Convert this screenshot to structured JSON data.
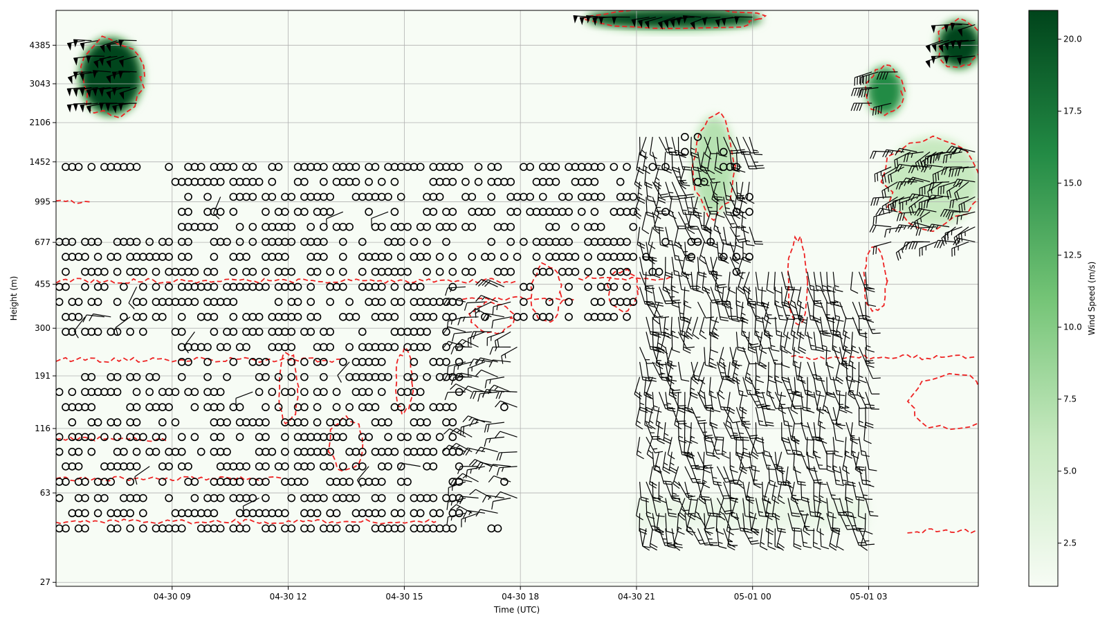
{
  "chart_data": {
    "type": "heatmap",
    "subtype": "time-height wind barbs over wind-speed shading",
    "xlabel": "Time (UTC)",
    "ylabel": "Height (m)",
    "x_range": [
      "04-30 06:00",
      "05-01 05:50"
    ],
    "x_ticks": [
      {
        "time": "04-30 09:00",
        "label": "04-30 09"
      },
      {
        "time": "04-30 12:00",
        "label": "04-30 12"
      },
      {
        "time": "04-30 15:00",
        "label": "04-30 15"
      },
      {
        "time": "04-30 18:00",
        "label": "04-30 18"
      },
      {
        "time": "04-30 21:00",
        "label": "04-30 21"
      },
      {
        "time": "05-01 00:00",
        "label": "05-01 00"
      },
      {
        "time": "05-01 03:00",
        "label": "05-01 03"
      }
    ],
    "y_scale": "log",
    "y_range": [
      26,
      6100
    ],
    "y_ticks": [
      27,
      63,
      116,
      191,
      300,
      455,
      677,
      995,
      1452,
      2106,
      3043,
      4385
    ],
    "grid": true,
    "colorbar": {
      "label": "Wind Speed (m/s)",
      "colormap": "Greens",
      "range": [
        1,
        21
      ],
      "ticks": [
        2.5,
        5.0,
        7.5,
        10.0,
        12.5,
        15.0,
        17.5,
        20.0
      ],
      "tick_labels": [
        "2.5",
        "5.0",
        "7.5",
        "10.0",
        "12.5",
        "15.0",
        "17.5",
        "20.0"
      ]
    },
    "contour": {
      "color": "#ee2222",
      "style": "dashed"
    },
    "colors": {
      "calm_marker": "#000000",
      "barb": "#000000",
      "grid": "#b0b0b0"
    },
    "bands": [
      {
        "from": "04-30 06:00",
        "to": "04-30 09:00",
        "regime": "calm",
        "levels": [
          [
            45,
            215
          ],
          [
            285,
            780
          ],
          [
            1300,
            1550
          ]
        ]
      },
      {
        "from": "04-30 09:00",
        "to": "04-30 16:30",
        "regime": "calm",
        "levels": [
          [
            45,
            1550
          ]
        ]
      },
      {
        "from": "04-30 16:30",
        "to": "04-30 18:00",
        "regime": "mixed",
        "levels": [
          [
            45,
            1550
          ]
        ]
      },
      {
        "from": "04-30 18:00",
        "to": "04-30 21:00",
        "regime": "calm-aloft",
        "levels": [
          [
            300,
            1550
          ]
        ]
      },
      {
        "from": "04-30 21:00",
        "to": "05-01 00:00",
        "regime": "barbs",
        "levels": [
          [
            45,
            1900
          ]
        ]
      },
      {
        "from": "05-01 00:00",
        "to": "05-01 03:00",
        "regime": "barbs-low",
        "levels": [
          [
            45,
            580
          ]
        ]
      },
      {
        "from": "05-01 03:30",
        "to": "05-01 05:50",
        "regime": "barbs-aloft",
        "levels": [
          [
            600,
            1800
          ]
        ]
      }
    ],
    "features": [
      {
        "name": "upper jet",
        "from": "04-30 06:40",
        "to": "04-30 08:10",
        "height": [
          2300,
          4600
        ],
        "speed": 21
      },
      {
        "name": "upper jet",
        "from": "04-30 19:45",
        "to": "05-01 00:10",
        "height": [
          5200,
          6100
        ],
        "speed": 21
      },
      {
        "name": "upper jet",
        "from": "05-01 03:00",
        "to": "05-01 03:50",
        "height": [
          2300,
          3500
        ],
        "speed": 16
      },
      {
        "name": "upper jet",
        "from": "05-01 04:50",
        "to": "05-01 05:50",
        "height": [
          3600,
          5400
        ],
        "speed": 21
      },
      {
        "name": "low-level jet",
        "from": "04-30 22:30",
        "to": "04-30 23:30",
        "height": [
          900,
          2200
        ],
        "speed": 7
      },
      {
        "name": "low-level jet",
        "from": "05-01 03:30",
        "to": "05-01 05:50",
        "height": [
          800,
          1800
        ],
        "speed": 6
      }
    ]
  }
}
